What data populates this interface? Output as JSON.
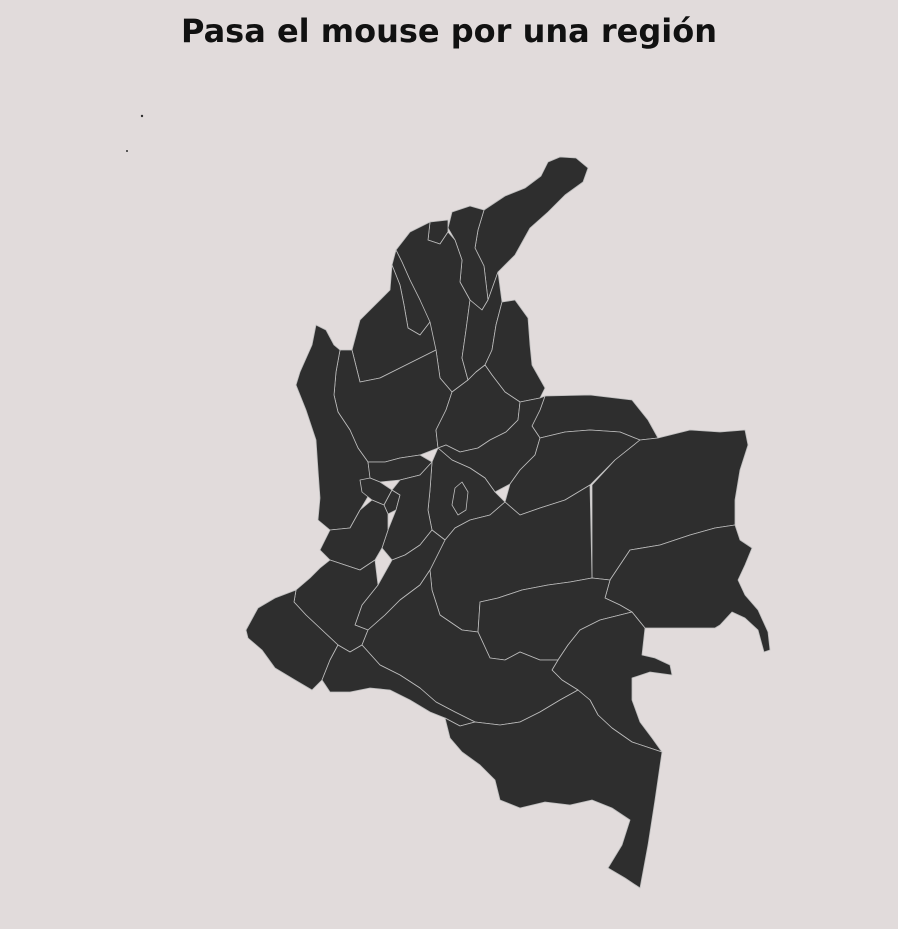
{
  "title": "Pasa el mouse por una región",
  "colors": {
    "background": "#e1dbdb",
    "region_fill": "#2e2e2e",
    "region_border": "#bdbdbd",
    "title": "#111111"
  }
}
